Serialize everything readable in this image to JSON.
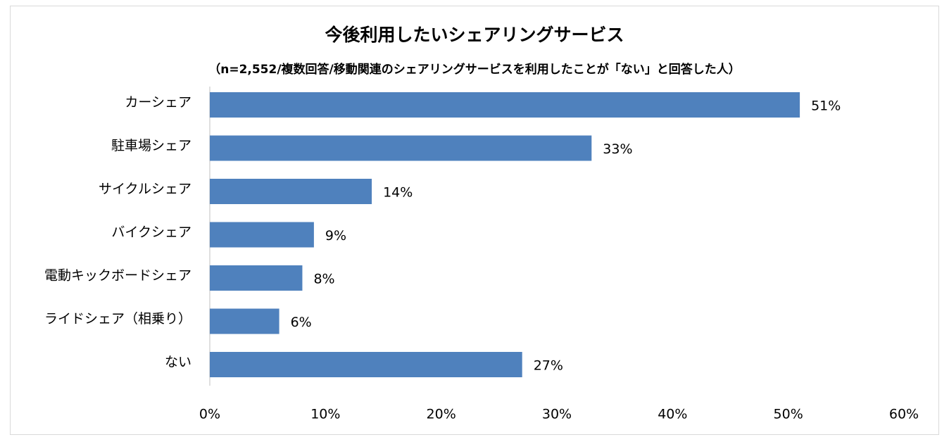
{
  "chart_data": {
    "type": "bar",
    "orientation": "horizontal",
    "title": "今後利用したいシェアリングサービス",
    "subtitle": "（n=2,552/複数回答/移動関連のシェアリングサービスを利用したことが「ない」と回答した人）",
    "categories": [
      "カーシェア",
      "駐車場シェア",
      "サイクルシェア",
      "バイクシェア",
      "電動キックボードシェア",
      "ライドシェア（相乗り）",
      "ない"
    ],
    "values": [
      51,
      33,
      14,
      9,
      8,
      6,
      27
    ],
    "value_labels": [
      "51%",
      "33%",
      "14%",
      "9%",
      "8%",
      "6%",
      "27%"
    ],
    "xlim": [
      0,
      60
    ],
    "xticks": [
      0,
      10,
      20,
      30,
      40,
      50,
      60
    ],
    "xtick_labels": [
      "0%",
      "10%",
      "20%",
      "30%",
      "40%",
      "50%",
      "60%"
    ],
    "bar_color": "#4f81bd",
    "grid": false,
    "legend": "none"
  }
}
